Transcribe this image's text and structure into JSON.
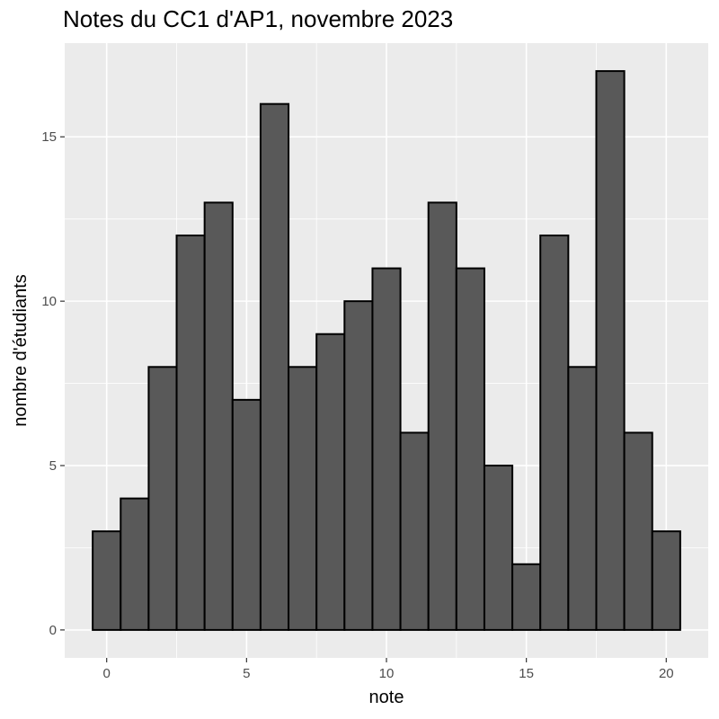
{
  "chart_data": {
    "type": "bar",
    "title": "Notes du CC1 d'AP1, novembre 2023",
    "xlabel": "note",
    "ylabel": "nombre d'étudiants",
    "x": [
      0,
      1,
      2,
      3,
      4,
      5,
      6,
      7,
      8,
      9,
      10,
      11,
      12,
      13,
      14,
      15,
      16,
      17,
      18,
      19,
      20
    ],
    "values": [
      3,
      4,
      8,
      12,
      13,
      7,
      16,
      8,
      9,
      10,
      11,
      6,
      13,
      11,
      5,
      2,
      12,
      8,
      17,
      6,
      3
    ],
    "xlim": [
      -1.5,
      21.5
    ],
    "ylim": [
      -0.85,
      17.85
    ],
    "x_ticks": [
      0,
      5,
      10,
      15,
      20
    ],
    "x_tick_labels": [
      "0",
      "5",
      "10",
      "15",
      "20"
    ],
    "y_ticks": [
      0,
      5,
      10,
      15
    ],
    "y_tick_labels": [
      "0",
      "5",
      "10",
      "15"
    ],
    "grid": true,
    "colors": {
      "panel": "#ebebeb",
      "grid": "#ffffff",
      "bar_fill": "#595959",
      "bar_stroke": "#000000",
      "tick": "#333333"
    }
  }
}
